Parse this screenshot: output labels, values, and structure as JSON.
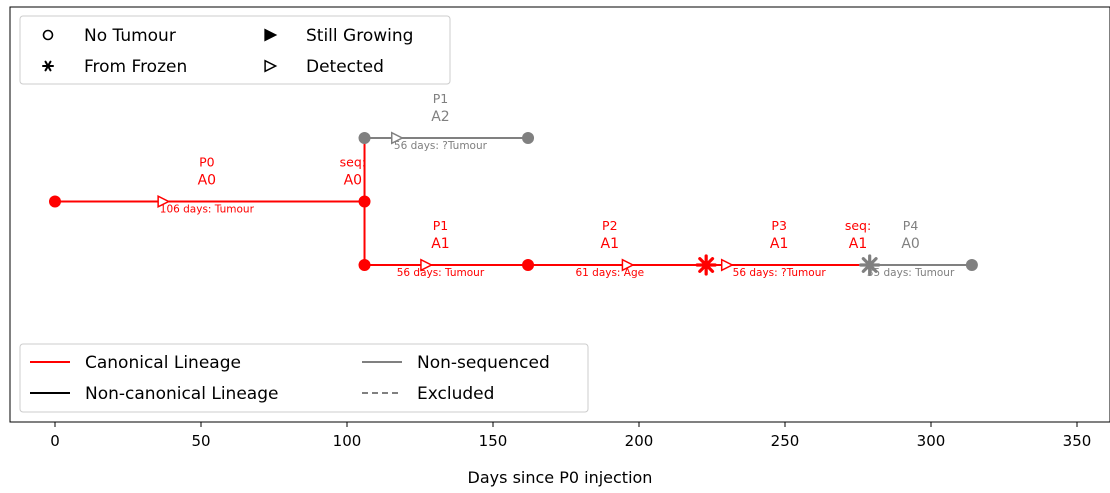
{
  "chart_data": {
    "type": "line",
    "title": "",
    "xlabel": "Days since P0 injection",
    "ylabel": "",
    "xlim": [
      -15,
      360
    ],
    "ylim": [
      -0.25,
      2.1
    ],
    "x_ticks": [
      0,
      50,
      100,
      150,
      200,
      250,
      300,
      350
    ],
    "grid": false,
    "series": [
      {
        "color": "#ff0000",
        "points": [
          [
            0,
            1.0
          ],
          [
            106,
            1.0
          ]
        ]
      },
      {
        "color": "#ff0000",
        "points": [
          [
            106,
            1.0
          ],
          [
            106,
            1.5
          ]
        ]
      },
      {
        "color": "#ff0000",
        "points": [
          [
            106,
            0.5
          ],
          [
            106,
            1.0
          ]
        ]
      },
      {
        "color": "#ff0000",
        "points": [
          [
            106,
            0.5
          ],
          [
            162,
            0.5
          ]
        ]
      },
      {
        "color": "#ff0000",
        "points": [
          [
            162,
            0.5
          ],
          [
            223,
            0.5
          ]
        ]
      },
      {
        "color": "#ff0000",
        "points": [
          [
            223,
            0.5
          ],
          [
            279,
            0.5
          ]
        ]
      },
      {
        "color": "#808080",
        "points": [
          [
            106,
            1.5
          ],
          [
            162,
            1.5
          ]
        ]
      },
      {
        "color": "#808080",
        "points": [
          [
            279,
            0.5
          ],
          [
            314,
            0.5
          ]
        ]
      }
    ],
    "markers": [
      {
        "x": 0,
        "y": 1.0,
        "shape": "dot",
        "color": "#ff0000"
      },
      {
        "x": 106,
        "y": 1.0,
        "shape": "dot",
        "color": "#ff0000"
      },
      {
        "x": 106,
        "y": 0.5,
        "shape": "dot",
        "color": "#ff0000"
      },
      {
        "x": 162,
        "y": 0.5,
        "shape": "dot",
        "color": "#ff0000"
      },
      {
        "x": 223,
        "y": 0.5,
        "shape": "star",
        "color": "#ff0000"
      },
      {
        "x": 279,
        "y": 0.5,
        "shape": "star",
        "color": "#808080"
      },
      {
        "x": 314,
        "y": 0.5,
        "shape": "dot",
        "color": "#808080"
      },
      {
        "x": 106,
        "y": 1.5,
        "shape": "dot",
        "color": "#808080"
      },
      {
        "x": 162,
        "y": 1.5,
        "shape": "dot",
        "color": "#808080"
      },
      {
        "x": 37,
        "y": 1.0,
        "shape": "tri-open",
        "color": "#ff0000"
      },
      {
        "x": 127,
        "y": 0.5,
        "shape": "tri-open",
        "color": "#ff0000"
      },
      {
        "x": 196,
        "y": 0.5,
        "shape": "tri-open",
        "color": "#ff0000"
      },
      {
        "x": 230,
        "y": 0.5,
        "shape": "tri-open",
        "color": "#ff0000"
      },
      {
        "x": 117,
        "y": 1.5,
        "shape": "tri-open",
        "color": "#808080"
      }
    ],
    "annotations": [
      {
        "x": 52,
        "y": 1.0,
        "line1": "P0",
        "line2": "A0",
        "detail": "106 days: Tumour",
        "color": "#ff0000"
      },
      {
        "x": 102,
        "y": 1.0,
        "line1": "seq:",
        "line2": "A0",
        "detail": "",
        "color": "#ff0000"
      },
      {
        "x": 132,
        "y": 1.5,
        "line1": "P1",
        "line2": "A2",
        "detail": "56 days: ?Tumour",
        "color": "#808080"
      },
      {
        "x": 132,
        "y": 0.5,
        "line1": "P1",
        "line2": "A1",
        "detail": "56 days: Tumour",
        "color": "#ff0000"
      },
      {
        "x": 190,
        "y": 0.5,
        "line1": "P2",
        "line2": "A1",
        "detail": "61 days: Age",
        "color": "#ff0000"
      },
      {
        "x": 248,
        "y": 0.5,
        "line1": "P3",
        "line2": "A1",
        "detail": "56 days: ?Tumour",
        "color": "#ff0000"
      },
      {
        "x": 275,
        "y": 0.5,
        "line1": "seq:",
        "line2": "A1",
        "detail": "",
        "color": "#ff0000"
      },
      {
        "x": 293,
        "y": 0.5,
        "line1": "P4",
        "line2": "A0",
        "detail": "35 days: Tumour",
        "color": "#808080"
      }
    ],
    "legend_markers": {
      "placement": "top-left",
      "entries": [
        {
          "label": "No Tumour",
          "shape": "circle-open"
        },
        {
          "label": "Still Growing",
          "shape": "tri-filled"
        },
        {
          "label": "From Frozen",
          "shape": "asterisk"
        },
        {
          "label": "Detected",
          "shape": "tri-open"
        }
      ]
    },
    "legend_lines": {
      "placement": "bottom-left",
      "entries": [
        {
          "label": "Canonical Lineage",
          "color": "#ff0000",
          "style": "solid"
        },
        {
          "label": "Non-sequenced",
          "color": "#808080",
          "style": "solid"
        },
        {
          "label": "Non-canonical Lineage",
          "color": "#000000",
          "style": "solid"
        },
        {
          "label": "Excluded",
          "color": "#808080",
          "style": "dashed"
        }
      ]
    }
  }
}
